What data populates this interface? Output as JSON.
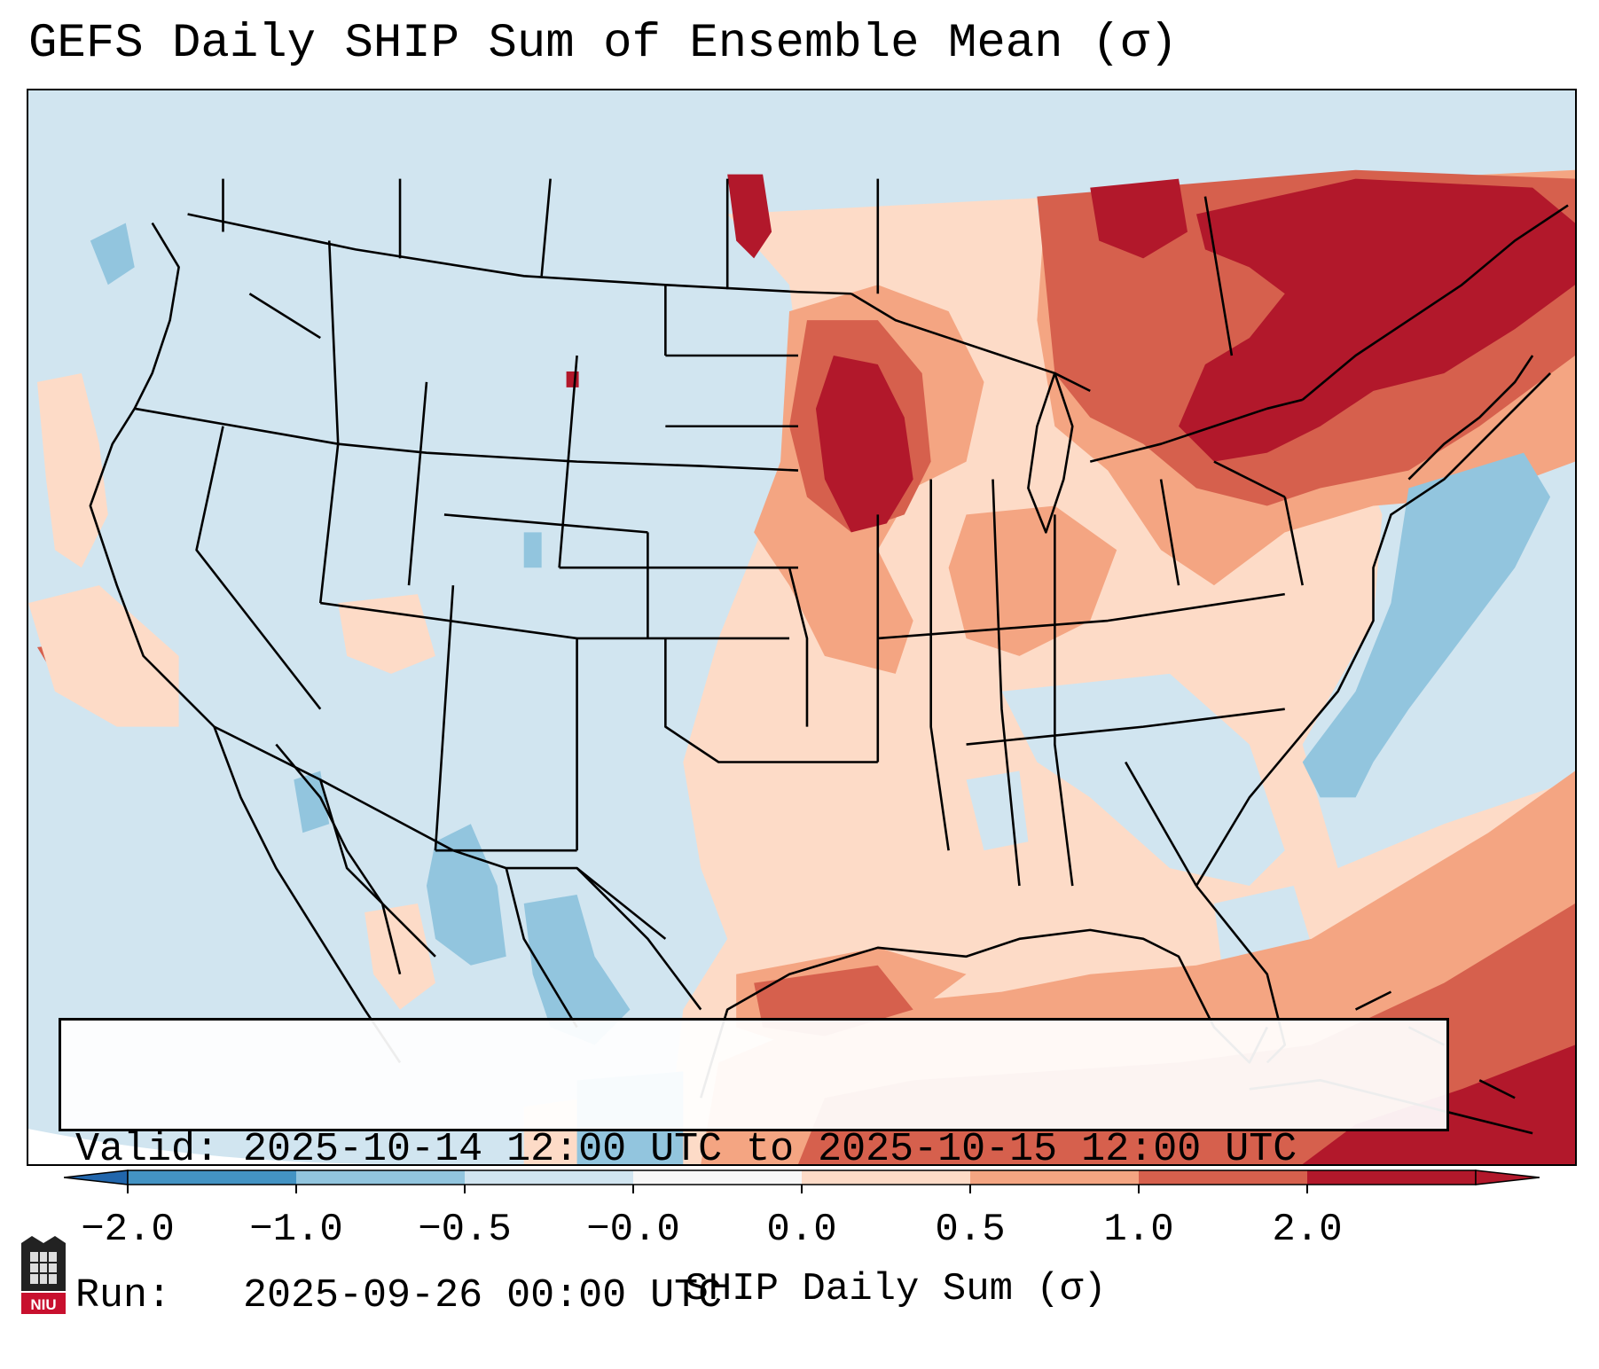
{
  "title": "GEFS Daily SHIP Sum of Ensemble Mean (σ)",
  "info": {
    "valid": "Valid: 2025-10-14 12:00 UTC to 2025-10-15 12:00 UTC",
    "run": "Run:   2025-09-26 00:00 UTC"
  },
  "colorbar": {
    "label": "SHIP Daily Sum (σ)",
    "ticks": [
      "−2.0",
      "−1.0",
      "−0.5",
      "−0.0",
      "0.0",
      "0.5",
      "1.0",
      "2.0"
    ],
    "colors": [
      "#4393c3",
      "#92c5de",
      "#d1e5f0",
      "#f7f7f7",
      "#fddbc7",
      "#f4a582",
      "#d6604d",
      "#b2182b"
    ],
    "extend": "both"
  },
  "logo": {
    "text": "NIU",
    "color": "#c8102e"
  }
}
